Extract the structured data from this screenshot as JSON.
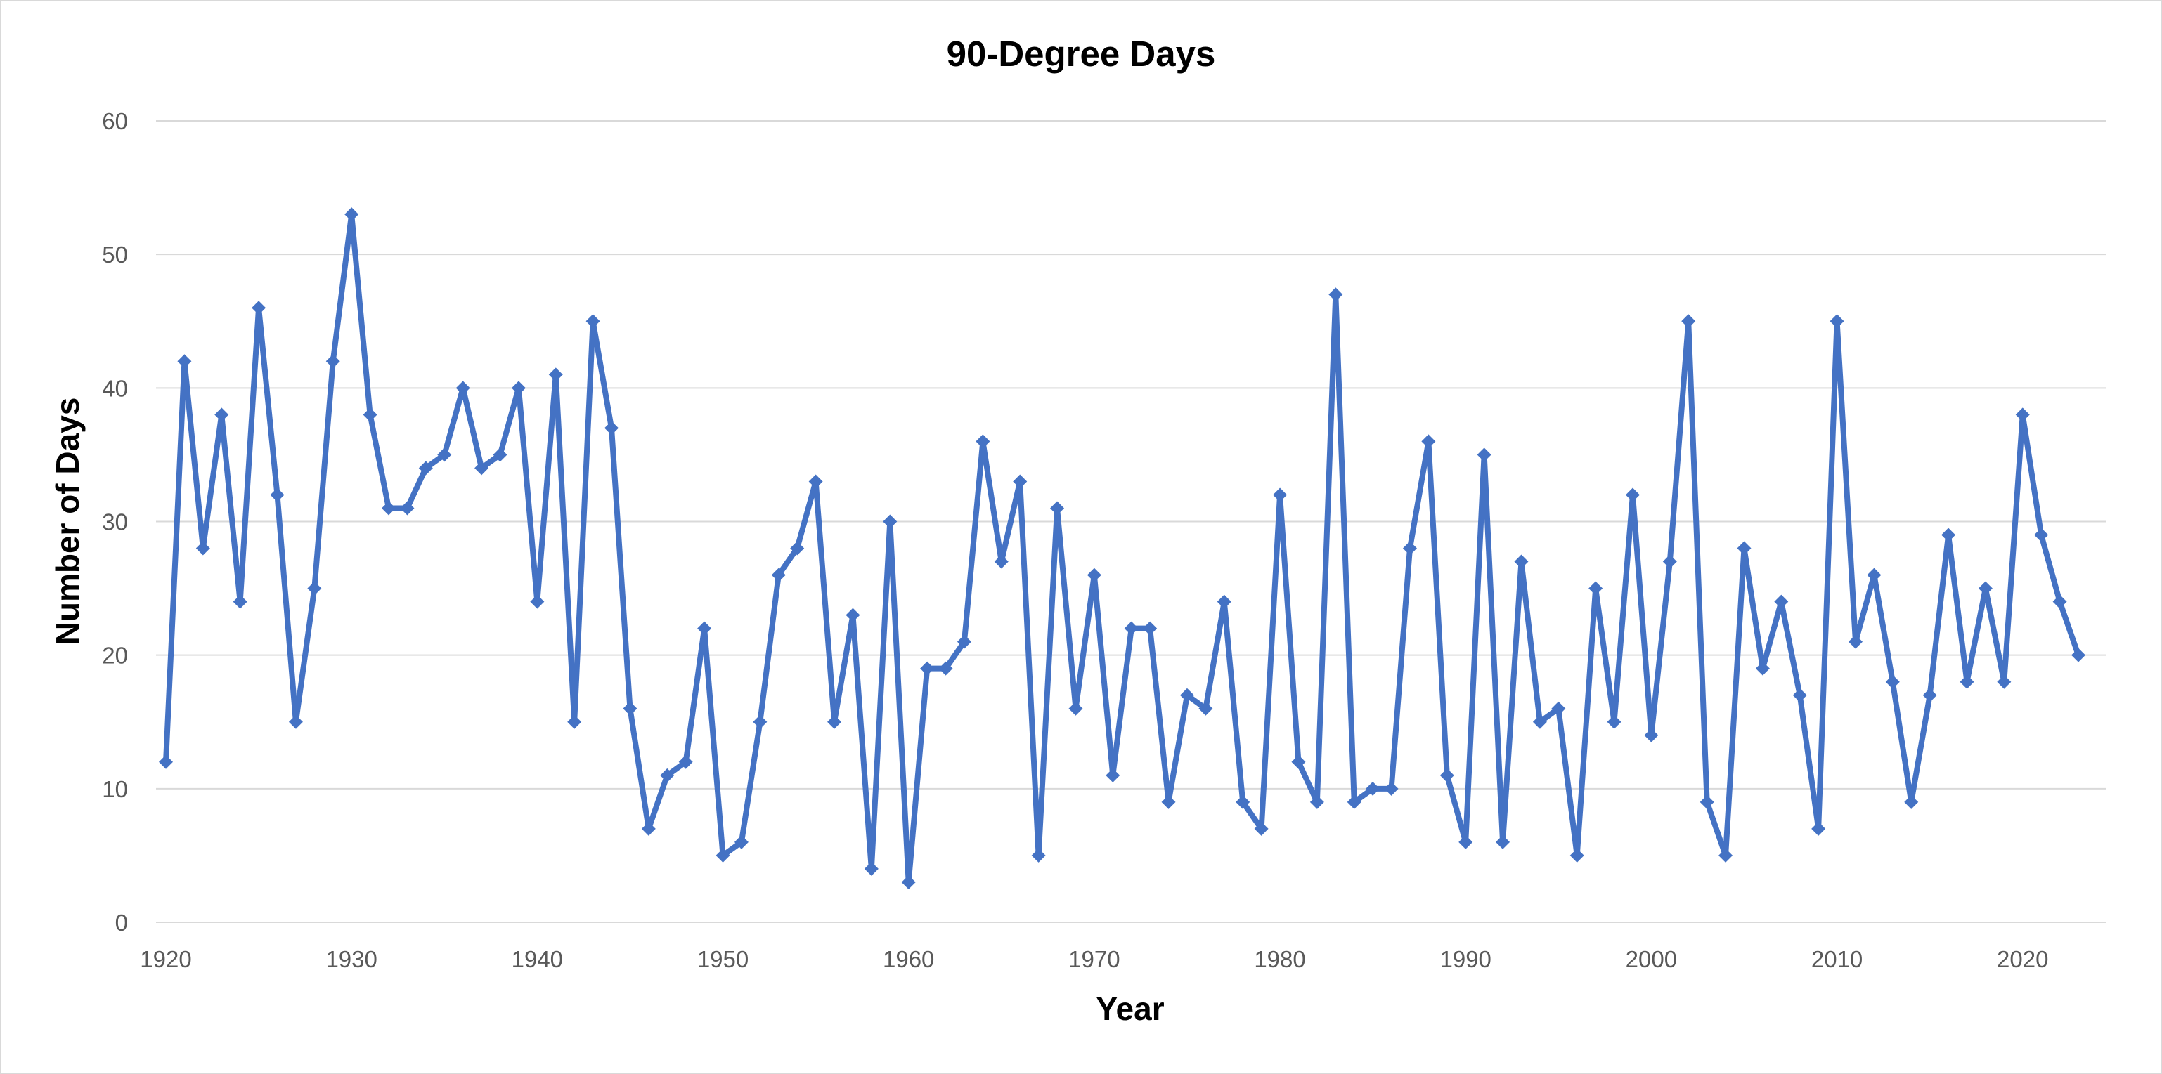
{
  "chart_data": {
    "type": "line",
    "title": "90-Degree Days",
    "xlabel": "Year",
    "ylabel": "Number of Days",
    "xlim": [
      1920,
      2023
    ],
    "ylim": [
      0,
      60
    ],
    "x_ticks": [
      "1920",
      "1930",
      "1940",
      "1950",
      "1960",
      "1970",
      "1980",
      "1990",
      "2000",
      "2010",
      "2020"
    ],
    "y_ticks": [
      "0",
      "10",
      "20",
      "30",
      "40",
      "50",
      "60"
    ],
    "grid": "horizontal",
    "legend": "none",
    "marker": "diamond",
    "colors": {
      "series": "#4472c4",
      "grid": "#d9d9d9",
      "tick_text": "#595959",
      "title_text": "#000000"
    },
    "series": [
      {
        "x": [
          1920,
          1921,
          1922,
          1923,
          1924,
          1925,
          1926,
          1927,
          1928,
          1929,
          1930,
          1931,
          1932,
          1933,
          1934,
          1935,
          1936,
          1937,
          1938,
          1939,
          1940,
          1941,
          1942,
          1943,
          1944,
          1945,
          1946,
          1947,
          1948,
          1949,
          1950,
          1951,
          1952,
          1953,
          1954,
          1955,
          1956,
          1957,
          1958,
          1959,
          1960,
          1961,
          1962,
          1963,
          1964,
          1965,
          1966,
          1967,
          1968,
          1969,
          1970,
          1971,
          1972,
          1973,
          1974,
          1975,
          1976,
          1977,
          1978,
          1979,
          1980,
          1981,
          1982,
          1983,
          1984,
          1985,
          1986,
          1987,
          1988,
          1989,
          1990,
          1991,
          1992,
          1993,
          1994,
          1995,
          1996,
          1997,
          1998,
          1999,
          2000,
          2001,
          2002,
          2003,
          2004,
          2005,
          2006,
          2007,
          2008,
          2009,
          2010,
          2011,
          2012,
          2013,
          2014,
          2015,
          2016,
          2017,
          2018,
          2019,
          2020,
          2021,
          2022,
          2023
        ],
        "values": [
          12,
          42,
          28,
          38,
          24,
          46,
          32,
          15,
          25,
          42,
          53,
          38,
          31,
          31,
          34,
          35,
          40,
          34,
          35,
          40,
          24,
          41,
          15,
          45,
          37,
          16,
          7,
          11,
          12,
          22,
          5,
          6,
          15,
          26,
          28,
          33,
          15,
          23,
          4,
          30,
          3,
          19,
          19,
          21,
          36,
          27,
          33,
          5,
          31,
          16,
          26,
          11,
          22,
          22,
          9,
          17,
          16,
          24,
          9,
          7,
          32,
          12,
          9,
          47,
          9,
          10,
          10,
          28,
          36,
          11,
          6,
          35,
          6,
          27,
          15,
          16,
          5,
          25,
          15,
          32,
          14,
          27,
          45,
          9,
          5,
          28,
          19,
          24,
          17,
          7,
          45,
          21,
          26,
          18,
          9,
          17,
          29,
          18,
          25,
          18,
          38,
          29,
          24,
          20
        ]
      }
    ]
  }
}
